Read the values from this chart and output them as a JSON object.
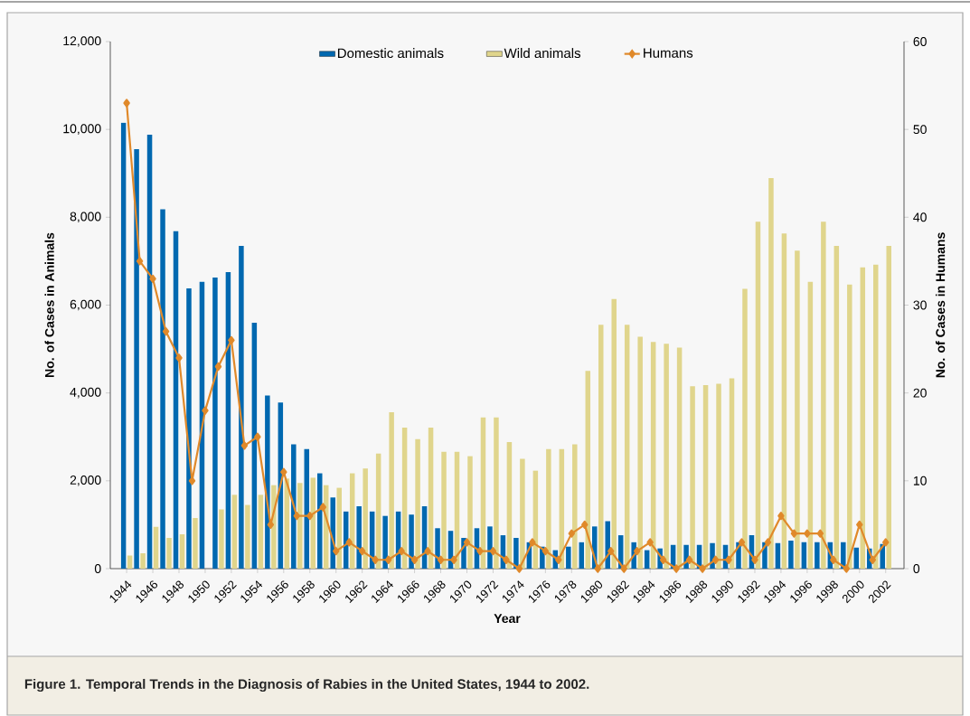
{
  "chart_data": {
    "type": "bar",
    "title": "Figure 1. Temporal Trends in the Diagnosis of Rabies in the United States, 1944 to 2002.",
    "xlabel": "Year",
    "ylabel": "No. of Cases in Animals",
    "y2label": "No. of Cases in Humans",
    "categories": [
      "1944",
      null,
      "1946",
      null,
      "1948",
      null,
      "1950",
      null,
      "1952",
      null,
      "1954",
      null,
      "1956",
      null,
      "1958",
      null,
      "1960",
      null,
      "1962",
      null,
      "1964",
      null,
      "1966",
      null,
      "1968",
      null,
      "1970",
      null,
      "1972",
      null,
      "1974",
      null,
      "1976",
      null,
      "1978",
      null,
      "1980",
      null,
      "1982",
      null,
      "1984",
      null,
      "1986",
      null,
      "1988",
      null,
      "1990",
      null,
      "1992",
      null,
      "1994",
      null,
      "1996",
      null,
      "1998",
      null,
      "2000",
      null,
      "2002"
    ],
    "series": [
      {
        "name": "Domestic animals",
        "color": "#0068b0",
        "values": [
          10150,
          9550,
          9880,
          8180,
          7680,
          6380,
          6530,
          6630,
          6750,
          7350,
          5600,
          3940,
          3780,
          2830,
          2720,
          2170,
          1620,
          1300,
          1420,
          1300,
          1200,
          1300,
          1230,
          1420,
          920,
          860,
          700,
          920,
          960,
          760,
          700,
          600,
          500,
          420,
          500,
          600,
          960,
          1080,
          760,
          600,
          420,
          460,
          540,
          540,
          540,
          580,
          540,
          600,
          760,
          600,
          580,
          640,
          600,
          600,
          600,
          600,
          480,
          460,
          560
        ]
      },
      {
        "name": "Wild animals",
        "color": "#e0d58c",
        "values": [
          300,
          350,
          950,
          700,
          780,
          1150,
          null,
          1350,
          1680,
          1450,
          1680,
          1900,
          2050,
          1950,
          2070,
          1900,
          1840,
          2170,
          2280,
          2620,
          3560,
          3210,
          2950,
          3210,
          2660,
          2660,
          2560,
          3440,
          3440,
          2880,
          2500,
          2230,
          2720,
          2720,
          2830,
          4500,
          5550,
          6140,
          5550,
          5280,
          5160,
          5120,
          5030,
          4150,
          4180,
          4210,
          4330,
          6370,
          7900,
          8890,
          7630,
          7240,
          6530,
          7900,
          7350,
          6470,
          6860,
          6920,
          7350
        ]
      },
      {
        "name": "Humans",
        "type": "line",
        "axis": "y2",
        "marker": "diamond",
        "color": "#e0892a",
        "values": [
          53,
          35,
          33,
          27,
          24,
          10,
          18,
          23,
          26,
          14,
          15,
          5,
          11,
          6,
          6,
          7,
          2,
          3,
          2,
          1,
          1,
          2,
          1,
          2,
          1,
          1,
          3,
          2,
          2,
          1,
          0,
          3,
          2,
          1,
          4,
          5,
          0,
          2,
          0,
          2,
          3,
          1,
          0,
          1,
          0,
          1,
          1,
          3,
          1,
          3,
          6,
          4,
          4,
          4,
          1,
          0,
          5,
          1,
          3
        ]
      }
    ],
    "ylim": [
      0,
      12000
    ],
    "yticks": [
      0,
      {
        "value": 2000,
        "label": "2,000"
      },
      {
        "value": 4000,
        "label": "4,000"
      },
      {
        "value": 6000,
        "label": "6,000"
      },
      {
        "value": 8000,
        "label": "8,000"
      },
      {
        "value": 10000,
        "label": "10,000"
      },
      {
        "value": 12000,
        "label": "12,000"
      }
    ],
    "y2lim": [
      0,
      60
    ],
    "y2ticks": [
      0,
      10,
      20,
      30,
      40,
      50,
      60
    ],
    "legend": "top"
  }
}
